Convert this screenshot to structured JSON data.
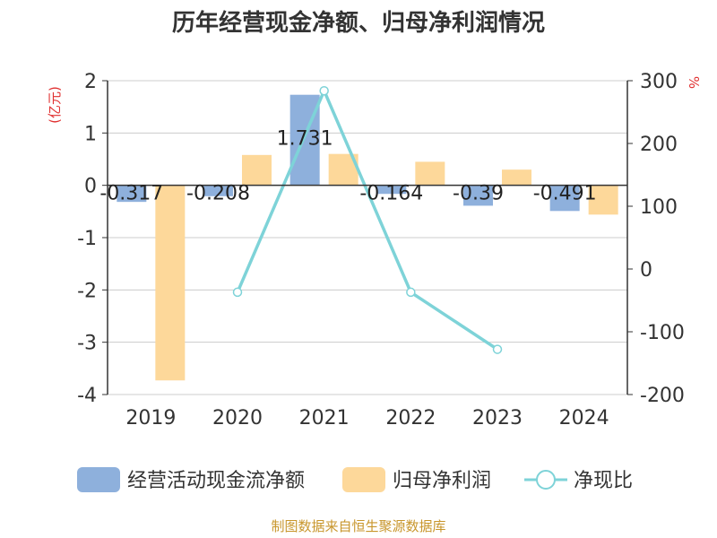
{
  "source_note": "制图数据来自恒生聚源数据库",
  "chart_data": {
    "type": "bar",
    "title": "历年经营现金净额、归母净利润情况",
    "y_left_label": "(亿元)",
    "y_right_label": "%",
    "categories": [
      "2019",
      "2020",
      "2021",
      "2022",
      "2023",
      "2024"
    ],
    "y_left_ticks": [
      "2",
      "1",
      "0",
      "-1",
      "-2",
      "-3",
      "-4"
    ],
    "y_right_ticks": [
      "300",
      "200",
      "100",
      "0",
      "-100",
      "-200"
    ],
    "y_left_range": [
      -4,
      2
    ],
    "y_right_range": [
      -200,
      300
    ],
    "grid": true,
    "legend_position": "bottom",
    "series": [
      {
        "name": "经营活动现金流净额",
        "kind": "bar",
        "axis": "left",
        "color": "#8eb0dc",
        "values": [
          -0.317,
          -0.208,
          1.731,
          -0.164,
          -0.39,
          -0.491
        ],
        "data_labels": [
          "-0.317",
          "-0.208",
          "1.731",
          "-0.164",
          "-0.39",
          "-0.491"
        ]
      },
      {
        "name": "归母净利润",
        "kind": "bar",
        "axis": "left",
        "color": "#fdd89a",
        "values": [
          -3.73,
          0.58,
          0.6,
          0.45,
          0.3,
          -0.56
        ]
      },
      {
        "name": "净现比",
        "kind": "line",
        "axis": "right",
        "color": "#7ed3d8",
        "values": [
          null,
          -37,
          284,
          -37,
          -128,
          null
        ]
      }
    ]
  }
}
